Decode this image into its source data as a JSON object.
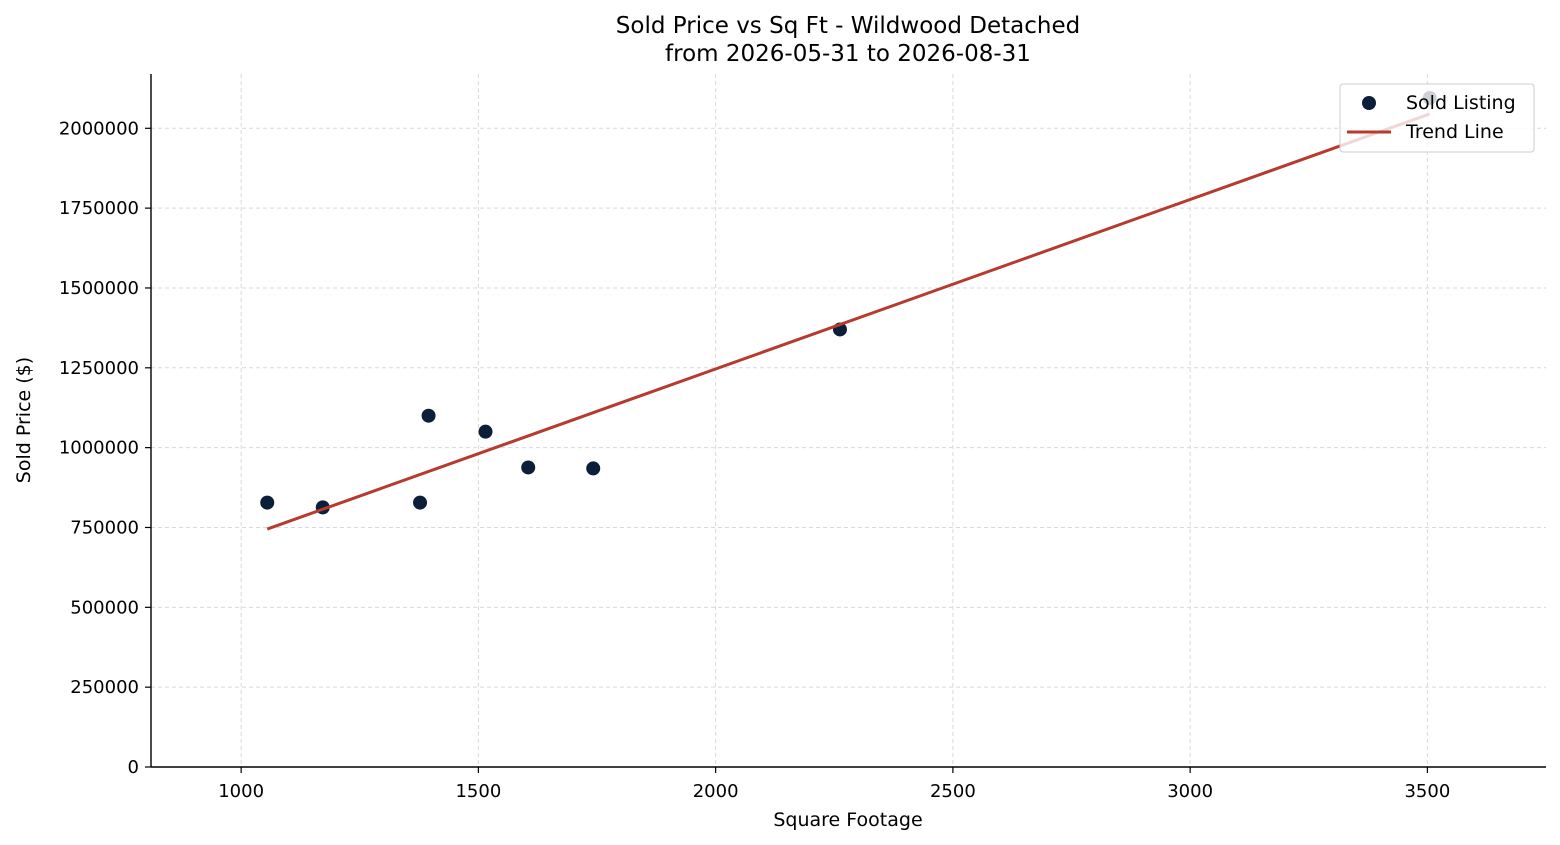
{
  "chart_data": {
    "type": "scatter",
    "title": [
      "Sold Price vs Sq Ft - Wildwood Detached",
      "from 2026-05-31 to 2026-08-31"
    ],
    "xlabel": "Square Footage",
    "ylabel": "Sold Price ($)",
    "xlim": [
      810,
      3750
    ],
    "ylim": [
      0,
      2170000
    ],
    "xticks": [
      1000,
      1500,
      2000,
      2500,
      3000,
      3500
    ],
    "yticks": [
      0,
      250000,
      500000,
      750000,
      1000000,
      1250000,
      1500000,
      1750000,
      2000000
    ],
    "grid": true,
    "legend_position": "top-right",
    "series": [
      {
        "name": "Sold Listing",
        "kind": "scatter",
        "color": "#0b1f3a",
        "points": [
          {
            "x": 1055,
            "y": 828000
          },
          {
            "x": 1172,
            "y": 813000
          },
          {
            "x": 1377,
            "y": 828000
          },
          {
            "x": 1395,
            "y": 1100000
          },
          {
            "x": 1515,
            "y": 1050000
          },
          {
            "x": 1605,
            "y": 938000
          },
          {
            "x": 1742,
            "y": 935000
          },
          {
            "x": 2262,
            "y": 1370000
          },
          {
            "x": 3505,
            "y": 2095000
          }
        ]
      },
      {
        "name": "Trend Line",
        "kind": "line",
        "color": "#b63b2e",
        "points": [
          {
            "x": 1055,
            "y": 745000
          },
          {
            "x": 3505,
            "y": 2045000
          }
        ]
      }
    ]
  }
}
